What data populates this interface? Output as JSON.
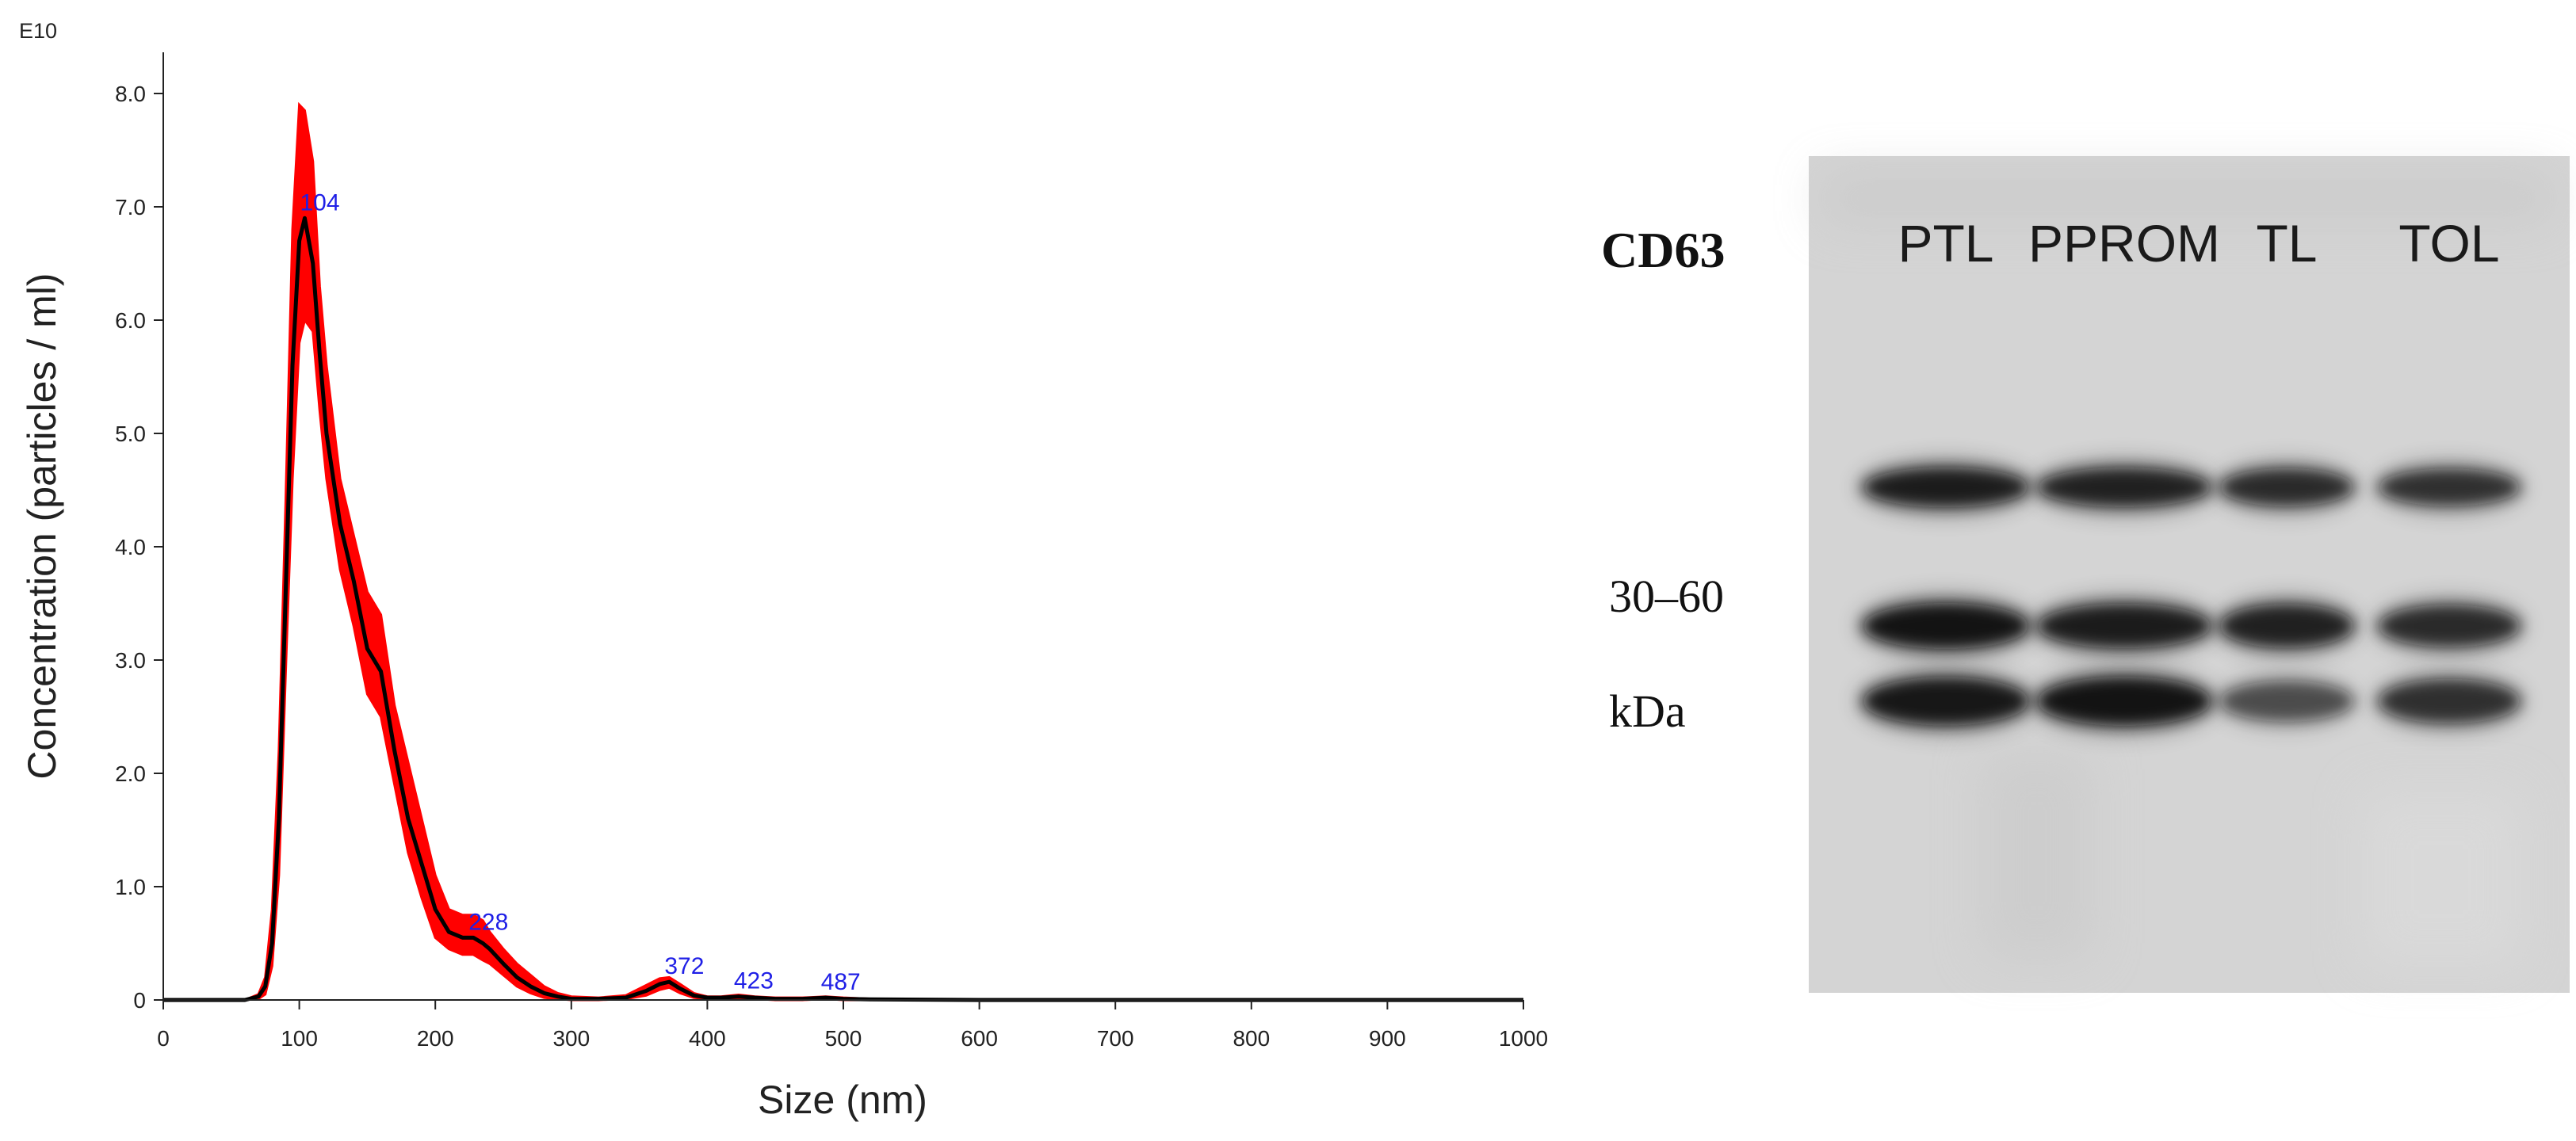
{
  "chart_data": [
    {
      "type": "area",
      "exponent_label": "E10",
      "xlabel": "Size (nm)",
      "ylabel": "Concentration (particles / ml)",
      "xlim": [
        0,
        1000
      ],
      "ylim": [
        0,
        8.0
      ],
      "xticks": [
        "0",
        "100",
        "200",
        "300",
        "400",
        "500",
        "600",
        "700",
        "800",
        "900",
        "1000"
      ],
      "yticks": [
        "0",
        "1.0",
        "2.0",
        "3.0",
        "4.0",
        "5.0",
        "6.0",
        "7.0",
        "8.0"
      ],
      "grid": false,
      "colors": {
        "mean_line": "#000000",
        "error_band": "#ff0000",
        "peak_labels": "#1f1fe6"
      },
      "x": [
        0,
        60,
        70,
        75,
        80,
        85,
        90,
        95,
        100,
        104,
        110,
        115,
        120,
        130,
        140,
        150,
        160,
        170,
        180,
        190,
        200,
        210,
        220,
        228,
        235,
        240,
        250,
        260,
        270,
        280,
        290,
        300,
        320,
        340,
        355,
        365,
        372,
        380,
        390,
        400,
        410,
        423,
        435,
        450,
        470,
        487,
        500,
        520,
        600,
        700,
        800,
        900,
        1000
      ],
      "mean": [
        0,
        0,
        0.03,
        0.12,
        0.5,
        1.6,
        3.6,
        5.6,
        6.7,
        6.9,
        6.5,
        5.7,
        5.0,
        4.2,
        3.7,
        3.1,
        2.9,
        2.2,
        1.6,
        1.2,
        0.8,
        0.6,
        0.55,
        0.55,
        0.5,
        0.45,
        0.32,
        0.2,
        0.12,
        0.06,
        0.03,
        0.01,
        0.01,
        0.02,
        0.08,
        0.14,
        0.16,
        0.1,
        0.04,
        0.02,
        0.02,
        0.03,
        0.02,
        0.01,
        0.01,
        0.02,
        0.01,
        0.005,
        0,
        0,
        0,
        0,
        0
      ],
      "upper": [
        0,
        0,
        0.05,
        0.2,
        0.8,
        2.2,
        4.4,
        6.8,
        7.9,
        7.85,
        7.4,
        6.3,
        5.6,
        4.6,
        4.1,
        3.6,
        3.4,
        2.6,
        2.1,
        1.6,
        1.1,
        0.8,
        0.75,
        0.75,
        0.7,
        0.6,
        0.45,
        0.32,
        0.22,
        0.12,
        0.06,
        0.03,
        0.02,
        0.04,
        0.13,
        0.19,
        0.2,
        0.14,
        0.06,
        0.03,
        0.03,
        0.045,
        0.03,
        0.02,
        0.02,
        0.03,
        0.02,
        0.01,
        0,
        0,
        0,
        0,
        0
      ],
      "lower": [
        0,
        0,
        0.01,
        0.05,
        0.3,
        1.1,
        2.9,
        4.6,
        5.8,
        6.0,
        5.9,
        5.2,
        4.6,
        3.8,
        3.3,
        2.7,
        2.5,
        1.9,
        1.3,
        0.9,
        0.55,
        0.45,
        0.4,
        0.4,
        0.35,
        0.32,
        0.22,
        0.12,
        0.06,
        0.02,
        0.01,
        0,
        0,
        0.01,
        0.04,
        0.09,
        0.11,
        0.06,
        0.02,
        0.01,
        0.01,
        0.015,
        0.01,
        0,
        0,
        0.01,
        0,
        0,
        0,
        0,
        0,
        0,
        0
      ],
      "peaks": [
        {
          "x": 104,
          "y": 6.9,
          "label": "104"
        },
        {
          "x": 228,
          "y": 0.55,
          "label": "228"
        },
        {
          "x": 372,
          "y": 0.16,
          "label": "372"
        },
        {
          "x": 423,
          "y": 0.03,
          "label": "423"
        },
        {
          "x": 487,
          "y": 0.02,
          "label": "487"
        }
      ]
    },
    {
      "type": "blot",
      "marker": "CD63",
      "weight_range": "30–60",
      "weight_unit": "kDa",
      "lanes": [
        "PTL",
        "PPROM",
        "TL",
        "TOL"
      ],
      "band_intensity": [
        [
          0.9,
          0.85,
          0.75,
          0.7
        ],
        [
          1.0,
          0.9,
          0.85,
          0.75
        ],
        [
          0.95,
          1.0,
          0.45,
          0.7
        ]
      ],
      "colors": {
        "membrane": "#d6d6d6",
        "band": "#111111"
      }
    }
  ]
}
